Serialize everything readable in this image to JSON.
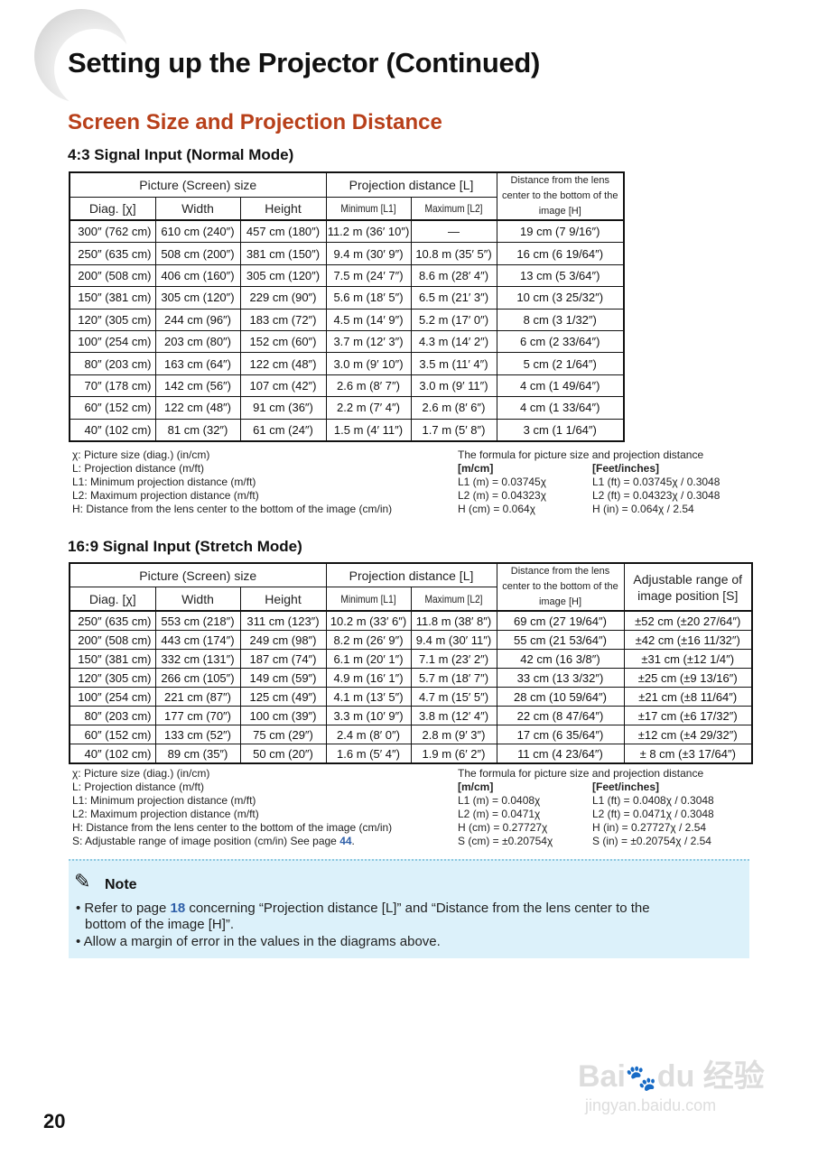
{
  "title": "Setting up the Projector (Continued)",
  "section": "Screen Size and Projection Distance",
  "table1": {
    "heading": "4:3 Signal Input (Normal Mode)",
    "group_headers": [
      "Picture (Screen) size",
      "Projection distance [L]",
      "Distance from the lens center to the bottom of the image [H]"
    ],
    "columns": [
      "Diag. [χ]",
      "Width",
      "Height",
      "Minimum [L1]",
      "Maximum [L2]"
    ],
    "rows": [
      [
        "300″ (762 cm)",
        "610 cm (240″)",
        "457 cm (180″)",
        "11.2 m (36′ 10″)",
        "—",
        "19 cm (7 9/16″)"
      ],
      [
        "250″ (635 cm)",
        "508 cm (200″)",
        "381 cm (150″)",
        "9.4 m (30′ 9″)",
        "10.8 m (35′ 5″)",
        "16 cm (6 19/64″)"
      ],
      [
        "200″ (508 cm)",
        "406 cm (160″)",
        "305 cm (120″)",
        "7.5 m (24′ 7″)",
        "8.6 m (28′ 4″)",
        "13 cm (5 3/64″)"
      ],
      [
        "150″ (381 cm)",
        "305 cm (120″)",
        "229 cm (90″)",
        "5.6 m (18′ 5″)",
        "6.5 m (21′ 3″)",
        "10 cm (3 25/32″)"
      ],
      [
        "120″ (305 cm)",
        "244 cm (96″)",
        "183 cm (72″)",
        "4.5 m (14′ 9″)",
        "5.2 m (17′ 0″)",
        "8 cm (3 1/32″)"
      ],
      [
        "100″ (254 cm)",
        "203 cm (80″)",
        "152 cm (60″)",
        "3.7 m (12′ 3″)",
        "4.3 m (14′ 2″)",
        "6 cm (2 33/64″)"
      ],
      [
        "80″ (203 cm)",
        "163 cm (64″)",
        "122 cm (48″)",
        "3.0 m (9′ 10″)",
        "3.5 m (11′ 4″)",
        "5 cm (2 1/64″)"
      ],
      [
        "70″ (178 cm)",
        "142 cm (56″)",
        "107 cm (42″)",
        "2.6 m (8′ 7″)",
        "3.0 m (9′ 11″)",
        "4 cm (1 49/64″)"
      ],
      [
        "60″ (152 cm)",
        "122 cm (48″)",
        "91 cm (36″)",
        "2.2 m (7′ 4″)",
        "2.6 m (8′ 6″)",
        "4 cm (1 33/64″)"
      ],
      [
        "40″ (102 cm)",
        "81 cm (32″)",
        "61 cm (24″)",
        "1.5 m (4′ 11″)",
        "1.7 m (5′ 8″)",
        "3 cm (1 1/64″)"
      ]
    ],
    "legend": [
      "χ: Picture size (diag.) (in/cm)",
      "L: Projection distance (m/ft)",
      "L1: Minimum projection distance (m/ft)",
      "L2: Maximum projection distance (m/ft)",
      "H: Distance from the lens center to the bottom of the image (cm/in)"
    ],
    "formula_title": "The formula for picture size and projection distance",
    "metric_head": "[m/cm]",
    "imperial_head": "[Feet/inches]",
    "metric": [
      "L1 (m) = 0.03745χ",
      "L2 (m) = 0.04323χ",
      "H (cm) = 0.064χ"
    ],
    "imperial": [
      "L1 (ft) = 0.03745χ / 0.3048",
      "L2 (ft) = 0.04323χ / 0.3048",
      "H (in) = 0.064χ / 2.54"
    ]
  },
  "table2": {
    "heading": "16:9 Signal Input (Stretch Mode)",
    "group_headers": [
      "Picture (Screen) size",
      "Projection distance [L]",
      "Distance from the lens center to the bottom of the image [H]",
      "Adjustable range of image position [S]"
    ],
    "columns": [
      "Diag. [χ]",
      "Width",
      "Height",
      "Minimum [L1]",
      "Maximum [L2]"
    ],
    "rows": [
      [
        "250″ (635 cm)",
        "553 cm (218″)",
        "311 cm (123″)",
        "10.2 m (33′ 6″)",
        "11.8 m (38′ 8″)",
        "69 cm (27 19/64″)",
        "±52 cm (±20 27/64″)"
      ],
      [
        "200″ (508 cm)",
        "443 cm (174″)",
        "249 cm (98″)",
        "8.2 m (26′ 9″)",
        "9.4 m (30′ 11″)",
        "55 cm (21 53/64″)",
        "±42 cm (±16 11/32″)"
      ],
      [
        "150″ (381 cm)",
        "332 cm (131″)",
        "187 cm (74″)",
        "6.1 m (20′ 1″)",
        "7.1 m (23′ 2″)",
        "42 cm (16 3/8″)",
        "±31 cm (±12 1/4″)"
      ],
      [
        "120″ (305 cm)",
        "266 cm (105″)",
        "149 cm (59″)",
        "4.9 m (16′ 1″)",
        "5.7 m (18′ 7″)",
        "33 cm (13 3/32″)",
        "±25 cm (±9 13/16″)"
      ],
      [
        "100″ (254 cm)",
        "221 cm (87″)",
        "125 cm (49″)",
        "4.1 m (13′ 5″)",
        "4.7 m (15′ 5″)",
        "28 cm (10 59/64″)",
        "±21 cm (±8 11/64″)"
      ],
      [
        "80″ (203 cm)",
        "177 cm (70″)",
        "100 cm (39″)",
        "3.3 m (10′ 9″)",
        "3.8 m (12′ 4″)",
        "22 cm (8 47/64″)",
        "±17 cm (±6 17/32″)"
      ],
      [
        "60″ (152 cm)",
        "133 cm (52″)",
        "75 cm (29″)",
        "2.4 m (8′ 0″)",
        "2.8 m (9′ 3″)",
        "17 cm (6 35/64″)",
        "±12 cm (±4 29/32″)"
      ],
      [
        "40″ (102 cm)",
        "89 cm (35″)",
        "50 cm (20″)",
        "1.6 m (5′ 4″)",
        "1.9 m (6′ 2″)",
        "11 cm (4 23/64″)",
        "± 8 cm (±3 17/64″)"
      ]
    ],
    "legend": [
      "χ: Picture size (diag.) (in/cm)",
      "L: Projection distance (m/ft)",
      "L1: Minimum projection distance (m/ft)",
      "L2: Maximum projection distance (m/ft)",
      "H: Distance from the lens center to the bottom of the image (cm/in)"
    ],
    "legend_s": "S: Adjustable range of image position (cm/in)   See page ",
    "legend_s_page": "44",
    "legend_s_end": ".",
    "formula_title": "The formula for picture size and projection distance",
    "metric_head": "[m/cm]",
    "imperial_head": "[Feet/inches]",
    "metric": [
      "L1 (m) = 0.0408χ",
      "L2 (m) = 0.0471χ",
      "H (cm) = 0.27727χ",
      "S (cm) = ±0.20754χ"
    ],
    "imperial": [
      "L1 (ft) = 0.0408χ / 0.3048",
      "L2 (ft) = 0.0471χ / 0.3048",
      "H (in) = 0.27727χ / 2.54",
      "S (in) = ±0.20754χ / 2.54"
    ]
  },
  "note": {
    "title": "Note",
    "line1_a": "• Refer to page ",
    "line1_page": "18",
    "line1_b": " concerning “Projection distance [L]” and “Distance from the lens center to the",
    "line1_c": "bottom of the image [H]”.",
    "line2": "• Allow a margin of error in the values in the diagrams above."
  },
  "page_number": "20",
  "watermark": {
    "logo": "Baidu经验",
    "url": "jingyan.baidu.com"
  }
}
